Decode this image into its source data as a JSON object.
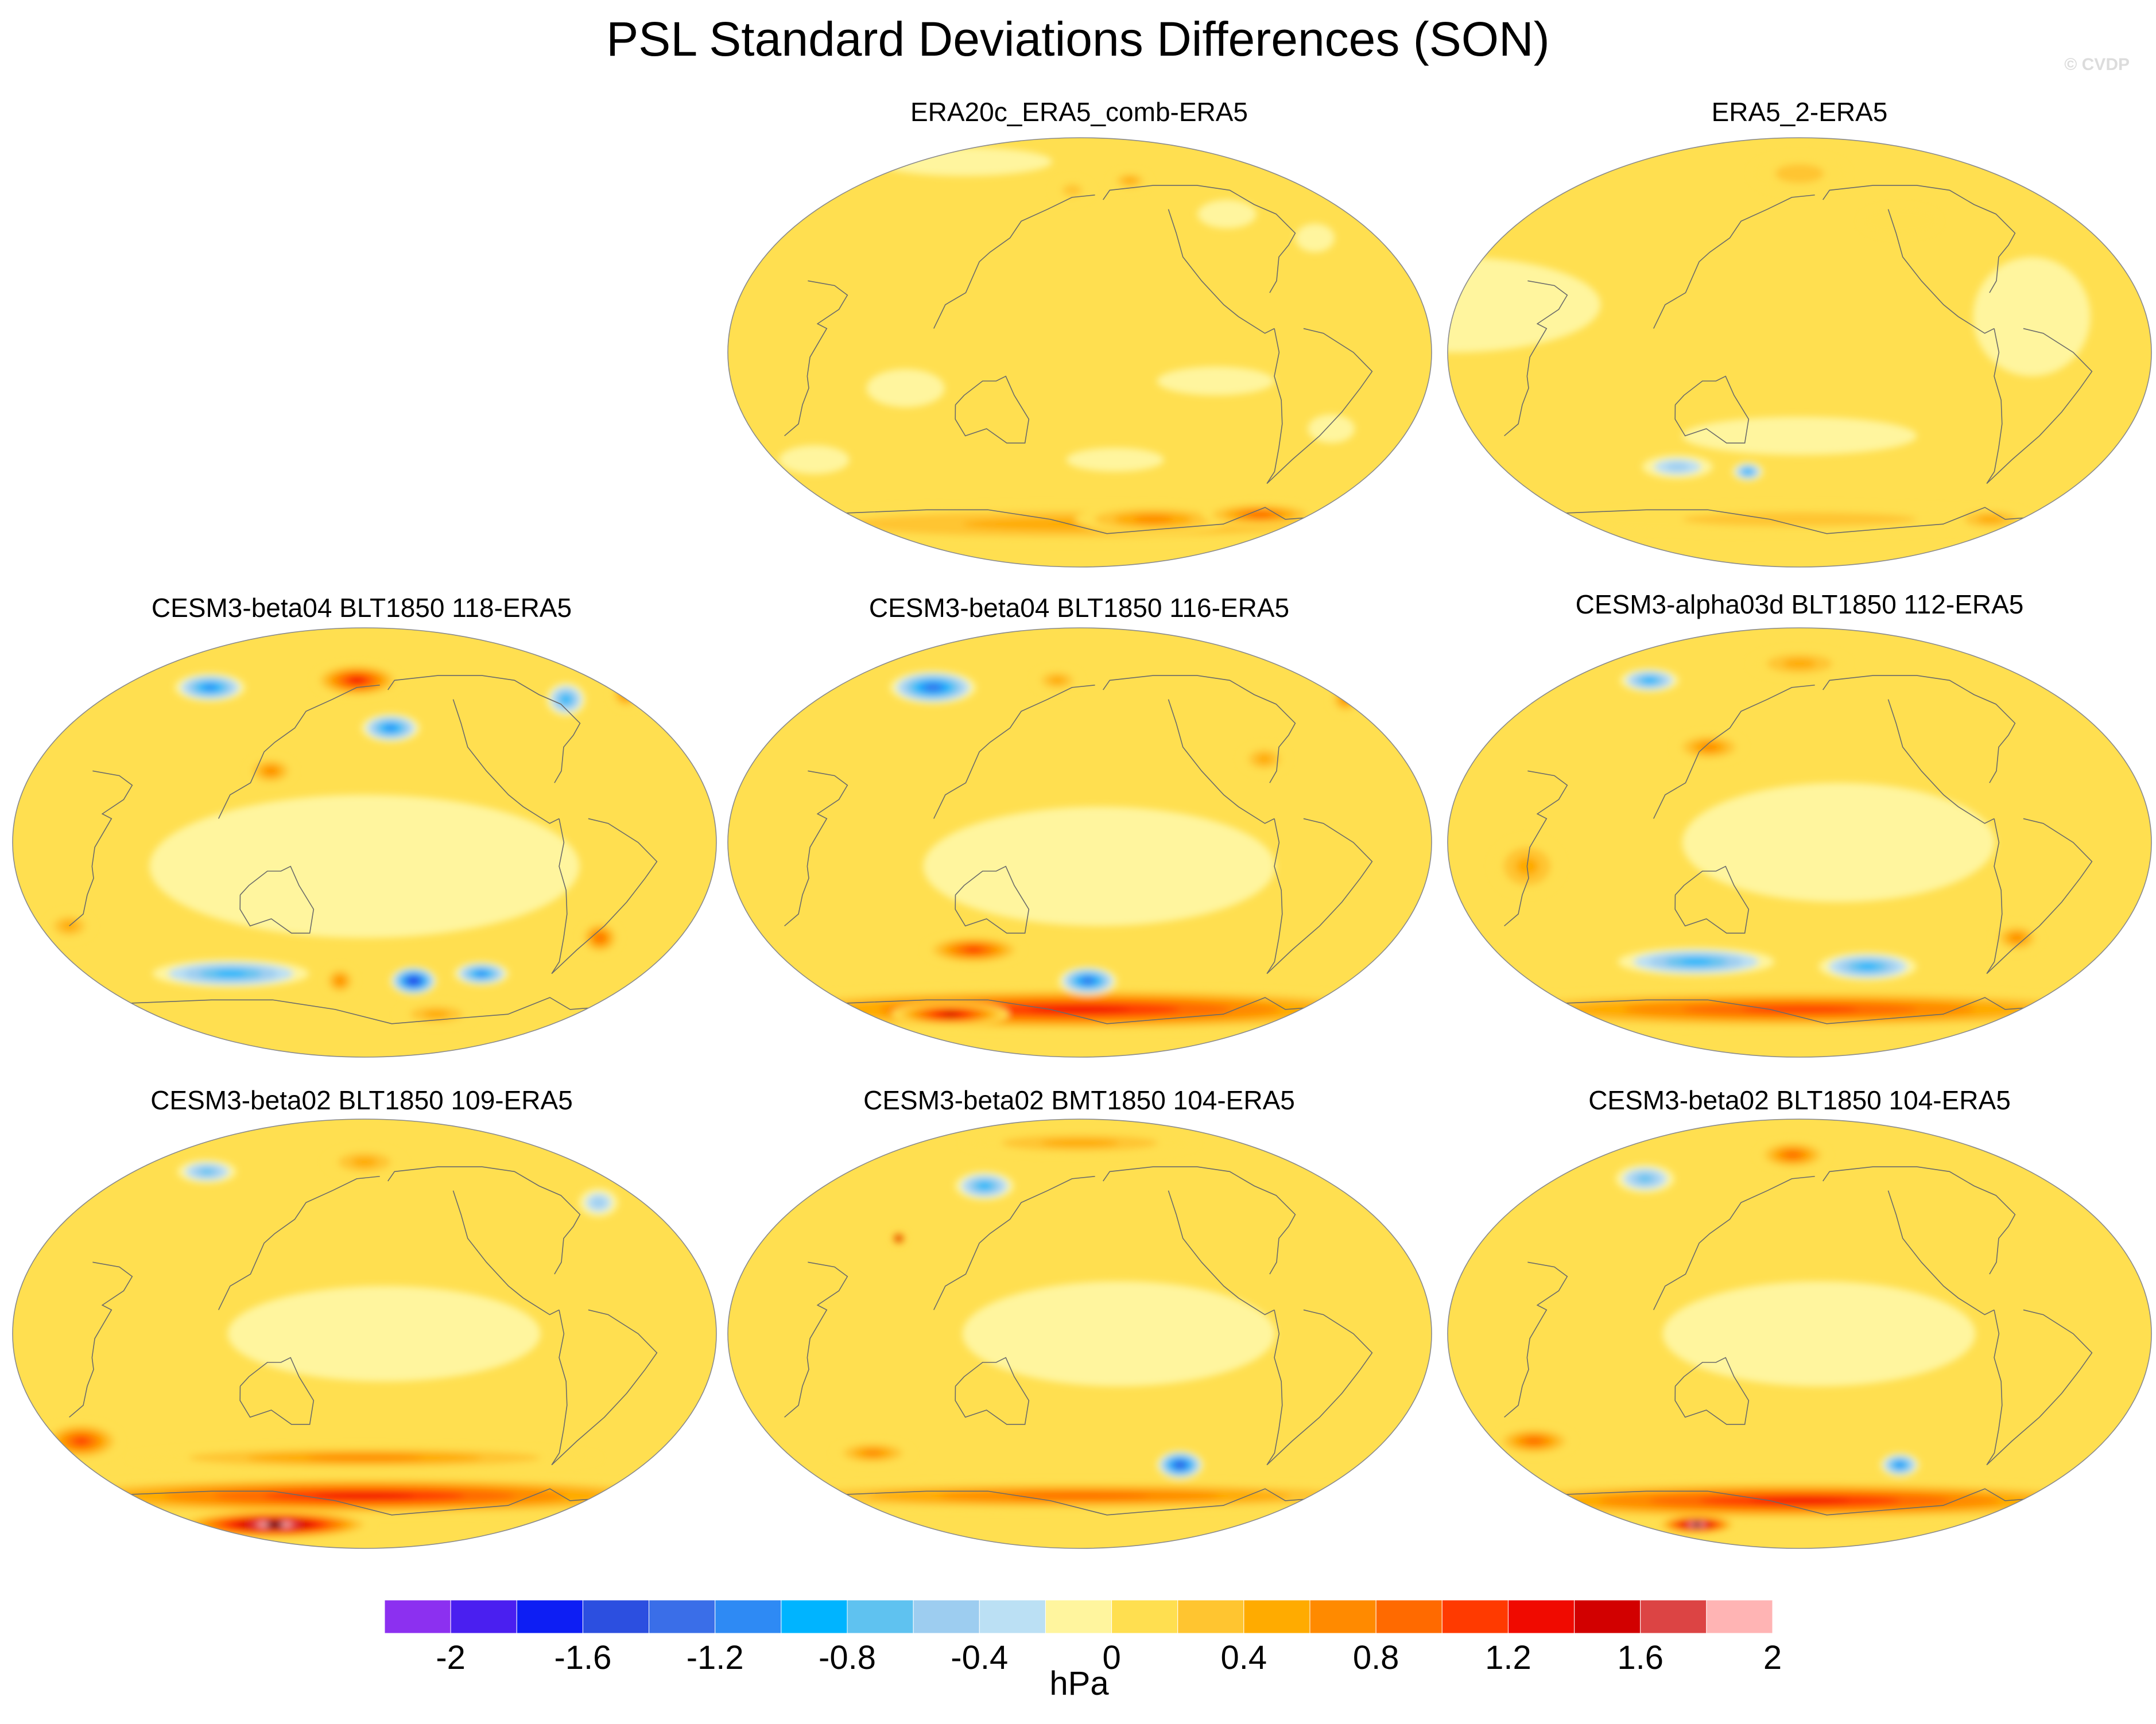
{
  "title": "PSL Standard Deviations Differences (SON)",
  "watermark": "© CVDP",
  "panels": [
    {
      "id": "era20c",
      "title": "ERA20c_ERA5_comb-ERA5",
      "position": "top-middle",
      "blobs": [
        {
          "lon": 175,
          "lat": 68,
          "rx": 10,
          "ry": 5,
          "v": 0.4
        },
        {
          "lon": 215,
          "lat": 72,
          "rx": 10,
          "ry": 4,
          "v": 0.5
        },
        {
          "lon": 90,
          "lat": 80,
          "rx": 45,
          "ry": 6,
          "v": -0.3
        },
        {
          "lon": 270,
          "lat": 58,
          "rx": 15,
          "ry": 6,
          "v": -0.3
        },
        {
          "lon": 315,
          "lat": 48,
          "rx": 10,
          "ry": 6,
          "v": -0.3
        },
        {
          "lon": 90,
          "lat": -15,
          "rx": 20,
          "ry": 8,
          "v": -0.3
        },
        {
          "lon": 250,
          "lat": -12,
          "rx": 30,
          "ry": 6,
          "v": -0.3
        },
        {
          "lon": 315,
          "lat": -32,
          "rx": 12,
          "ry": 6,
          "v": -0.3
        },
        {
          "lon": 30,
          "lat": -45,
          "rx": 18,
          "ry": 6,
          "v": -0.3
        },
        {
          "lon": 200,
          "lat": -45,
          "rx": 25,
          "ry": 5,
          "v": -0.3
        },
        {
          "lon": 180,
          "lat": -72,
          "rx": 180,
          "ry": 8,
          "v": 0.5
        },
        {
          "lon": 230,
          "lat": -70,
          "rx": 40,
          "ry": 6,
          "v": 0.8
        },
        {
          "lon": 300,
          "lat": -68,
          "rx": 30,
          "ry": 5,
          "v": 0.9
        }
      ]
    },
    {
      "id": "era5_2",
      "title": "ERA5_2-ERA5",
      "position": "top-right",
      "blobs": [
        {
          "lon": 0,
          "lat": 20,
          "rx": 75,
          "ry": 20,
          "v": -0.3
        },
        {
          "lon": 300,
          "lat": 15,
          "rx": 30,
          "ry": 25,
          "v": -0.3
        },
        {
          "lon": 180,
          "lat": 75,
          "rx": 25,
          "ry": 8,
          "v": 0.4
        },
        {
          "lon": 240,
          "lat": 55,
          "rx": 20,
          "ry": 6,
          "v": 0.3
        },
        {
          "lon": 180,
          "lat": -35,
          "rx": 60,
          "ry": 8,
          "v": -0.3
        },
        {
          "lon": 110,
          "lat": -48,
          "rx": 18,
          "ry": 5,
          "v": -0.5
        },
        {
          "lon": 150,
          "lat": -50,
          "rx": 8,
          "ry": 4,
          "v": -0.9
        },
        {
          "lon": 180,
          "lat": -70,
          "rx": 120,
          "ry": 6,
          "v": 0.4
        },
        {
          "lon": 310,
          "lat": -70,
          "rx": 20,
          "ry": 5,
          "v": 0.5
        }
      ]
    },
    {
      "id": "beta04_118",
      "title": "CESM3-beta04 BLT1850 118-ERA5",
      "position": "middle-left",
      "blobs": [
        {
          "lon": 180,
          "lat": -10,
          "rx": 110,
          "ry": 30,
          "v": -0.3
        },
        {
          "lon": 80,
          "lat": 65,
          "rx": 18,
          "ry": 6,
          "v": -1.2
        },
        {
          "lon": 175,
          "lat": 68,
          "rx": 22,
          "ry": 7,
          "v": 1.4
        },
        {
          "lon": 195,
          "lat": 48,
          "rx": 15,
          "ry": 6,
          "v": -1.1
        },
        {
          "lon": 305,
          "lat": 60,
          "rx": 10,
          "ry": 7,
          "v": -0.9
        },
        {
          "lon": 345,
          "lat": 62,
          "rx": 8,
          "ry": 6,
          "v": 0.8
        },
        {
          "lon": 130,
          "lat": 30,
          "rx": 12,
          "ry": 6,
          "v": 0.8
        },
        {
          "lon": 20,
          "lat": -35,
          "rx": 12,
          "ry": 6,
          "v": 0.7
        },
        {
          "lon": 100,
          "lat": -55,
          "rx": 40,
          "ry": 6,
          "v": -1.0
        },
        {
          "lon": 210,
          "lat": -58,
          "rx": 12,
          "ry": 6,
          "v": -1.7
        },
        {
          "lon": 165,
          "lat": -58,
          "rx": 8,
          "ry": 6,
          "v": 0.8
        },
        {
          "lon": 250,
          "lat": -55,
          "rx": 14,
          "ry": 5,
          "v": -1.1
        },
        {
          "lon": 310,
          "lat": -40,
          "rx": 10,
          "ry": 7,
          "v": 0.9
        },
        {
          "lon": 230,
          "lat": -72,
          "rx": 20,
          "ry": 5,
          "v": 0.7
        }
      ]
    },
    {
      "id": "beta04_116",
      "title": "CESM3-beta04 BLT1850 116-ERA5",
      "position": "middle-center",
      "blobs": [
        {
          "lon": 190,
          "lat": -10,
          "rx": 90,
          "ry": 25,
          "v": -0.3
        },
        {
          "lon": 85,
          "lat": 65,
          "rx": 22,
          "ry": 7,
          "v": -1.3
        },
        {
          "lon": 165,
          "lat": 68,
          "rx": 12,
          "ry": 5,
          "v": 0.5
        },
        {
          "lon": 280,
          "lat": 35,
          "rx": 12,
          "ry": 6,
          "v": 0.7
        },
        {
          "lon": 345,
          "lat": 60,
          "rx": 8,
          "ry": 6,
          "v": 0.8
        },
        {
          "lon": 120,
          "lat": -45,
          "rx": 25,
          "ry": 6,
          "v": 1.1
        },
        {
          "lon": 185,
          "lat": -58,
          "rx": 15,
          "ry": 6,
          "v": -1.4
        },
        {
          "lon": 180,
          "lat": -70,
          "rx": 180,
          "ry": 9,
          "v": 1.4
        },
        {
          "lon": 90,
          "lat": -72,
          "rx": 30,
          "ry": 5,
          "v": 1.6
        }
      ]
    },
    {
      "id": "alpha03d_112",
      "title": "CESM3-alpha03d BLT1850 112-ERA5",
      "position": "middle-right",
      "blobs": [
        {
          "lon": 200,
          "lat": 0,
          "rx": 80,
          "ry": 25,
          "v": -0.3
        },
        {
          "lon": 80,
          "lat": 68,
          "rx": 15,
          "ry": 5,
          "v": -1.0
        },
        {
          "lon": 180,
          "lat": 75,
          "rx": 25,
          "ry": 6,
          "v": 0.7
        },
        {
          "lon": 130,
          "lat": 40,
          "rx": 18,
          "ry": 6,
          "v": 0.8
        },
        {
          "lon": 40,
          "lat": -10,
          "rx": 18,
          "ry": 12,
          "v": 0.7
        },
        {
          "lon": 120,
          "lat": -50,
          "rx": 40,
          "ry": 6,
          "v": -0.9
        },
        {
          "lon": 220,
          "lat": -52,
          "rx": 25,
          "ry": 6,
          "v": -1.0
        },
        {
          "lon": 300,
          "lat": -40,
          "rx": 12,
          "ry": 6,
          "v": 0.8
        },
        {
          "lon": 180,
          "lat": -70,
          "rx": 180,
          "ry": 8,
          "v": 1.2
        }
      ]
    },
    {
      "id": "beta02_109",
      "title": "CESM3-beta02 BLT1850 109-ERA5",
      "position": "bottom-left",
      "blobs": [
        {
          "lon": 190,
          "lat": 0,
          "rx": 80,
          "ry": 20,
          "v": -0.3
        },
        {
          "lon": 75,
          "lat": 68,
          "rx": 15,
          "ry": 5,
          "v": -0.8
        },
        {
          "lon": 180,
          "lat": 72,
          "rx": 20,
          "ry": 6,
          "v": 0.6
        },
        {
          "lon": 320,
          "lat": 55,
          "rx": 10,
          "ry": 6,
          "v": -0.7
        },
        {
          "lon": 20,
          "lat": -45,
          "rx": 20,
          "ry": 8,
          "v": 1.1
        },
        {
          "lon": 180,
          "lat": -52,
          "rx": 120,
          "ry": 5,
          "v": 0.8
        },
        {
          "lon": 180,
          "lat": -68,
          "rx": 180,
          "ry": 8,
          "v": 1.4
        },
        {
          "lon": 110,
          "lat": -80,
          "rx": 50,
          "ry": 6,
          "v": 2.1
        }
      ]
    },
    {
      "id": "beta02_bmt104",
      "title": "CESM3-beta02 BMT1850 104-ERA5",
      "position": "bottom-center",
      "blobs": [
        {
          "lon": 200,
          "lat": 0,
          "rx": 80,
          "ry": 22,
          "v": -0.3
        },
        {
          "lon": 120,
          "lat": 62,
          "rx": 15,
          "ry": 6,
          "v": -0.9
        },
        {
          "lon": 180,
          "lat": 80,
          "rx": 60,
          "ry": 5,
          "v": 0.6
        },
        {
          "lon": 80,
          "lat": 40,
          "rx": 4,
          "ry": 3,
          "v": 1.6
        },
        {
          "lon": 240,
          "lat": -55,
          "rx": 12,
          "ry": 6,
          "v": -1.5
        },
        {
          "lon": 60,
          "lat": -50,
          "rx": 20,
          "ry": 5,
          "v": 0.8
        },
        {
          "lon": 180,
          "lat": -68,
          "rx": 180,
          "ry": 6,
          "v": 0.9
        }
      ]
    },
    {
      "id": "beta02_blt104",
      "title": "CESM3-beta02 BLT1850 104-ERA5",
      "position": "bottom-right",
      "blobs": [
        {
          "lon": 190,
          "lat": 0,
          "rx": 80,
          "ry": 22,
          "v": -0.3
        },
        {
          "lon": 80,
          "lat": 65,
          "rx": 15,
          "ry": 6,
          "v": -0.8
        },
        {
          "lon": 175,
          "lat": 75,
          "rx": 18,
          "ry": 6,
          "v": 1.0
        },
        {
          "lon": 30,
          "lat": -45,
          "rx": 20,
          "ry": 6,
          "v": 1.0
        },
        {
          "lon": 240,
          "lat": -55,
          "rx": 10,
          "ry": 5,
          "v": -1.2
        },
        {
          "lon": 180,
          "lat": -70,
          "rx": 180,
          "ry": 8,
          "v": 1.4
        },
        {
          "lon": 100,
          "lat": -80,
          "rx": 20,
          "ry": 4,
          "v": 2.1
        }
      ]
    }
  ],
  "colorbar": {
    "levels": [
      -2.2,
      -2,
      -1.8,
      -1.6,
      -1.4,
      -1.2,
      -1,
      -0.8,
      -0.6,
      -0.4,
      -0.2,
      0,
      0.2,
      0.4,
      0.6,
      0.8,
      1,
      1.2,
      1.4,
      1.6,
      1.8,
      2,
      2.2
    ],
    "colors": [
      "#8c30f0",
      "#4a1ff0",
      "#0d1ef4",
      "#2c4fe0",
      "#3a6ee8",
      "#2e8af4",
      "#00b4ff",
      "#5fc2f0",
      "#9dcdf0",
      "#bbe0f4",
      "#fff59e",
      "#ffdf50",
      "#ffc530",
      "#ffab00",
      "#ff8a00",
      "#ff6a00",
      "#ff3a00",
      "#f00a00",
      "#d20000",
      "#dc4444",
      "#ffb4b4"
    ],
    "tick_labels": [
      "-2",
      "-1.6",
      "-1.2",
      "-0.8",
      "-0.4",
      "0",
      "0.4",
      "0.8",
      "1.2",
      "1.6",
      "2"
    ],
    "tick_values": [
      -2,
      -1.6,
      -1.2,
      -0.8,
      -0.4,
      0,
      0.4,
      0.8,
      1.2,
      1.6,
      2
    ],
    "units": "hPa"
  }
}
